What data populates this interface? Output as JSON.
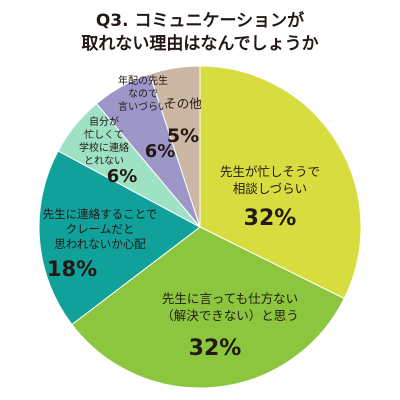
{
  "chart_data": {
    "type": "pie",
    "title": [
      "Q3. コミュニケーションが",
      "取れない理由はなんでしょうか"
    ],
    "slices": [
      {
        "label": [
          "先生が忙しそうで",
          "相談しづらい"
        ],
        "value_label": "32%",
        "value": 32,
        "color": "#d7dd3e"
      },
      {
        "label": [
          "先生に言っても仕方ない",
          "（解決できない）と思う"
        ],
        "value_label": "32%",
        "value": 32,
        "color": "#8cc63f"
      },
      {
        "label": [
          "先生に連絡することで",
          "クレームだと",
          "思われないか心配"
        ],
        "value_label": "18%",
        "value": 18,
        "color": "#10a19a"
      },
      {
        "label": [
          "自分が",
          "忙しくて",
          "学校に連絡",
          "とれない"
        ],
        "value_label": "6%",
        "value": 6,
        "color": "#9ee1c5"
      },
      {
        "label": [
          "年配の先生",
          "なので",
          "言いづらい"
        ],
        "value_label": "6%",
        "value": 6,
        "color": "#9c97c8"
      },
      {
        "label": [
          "その他"
        ],
        "value_label": "5%",
        "value": 5,
        "color": "#cbb7a3"
      }
    ]
  }
}
